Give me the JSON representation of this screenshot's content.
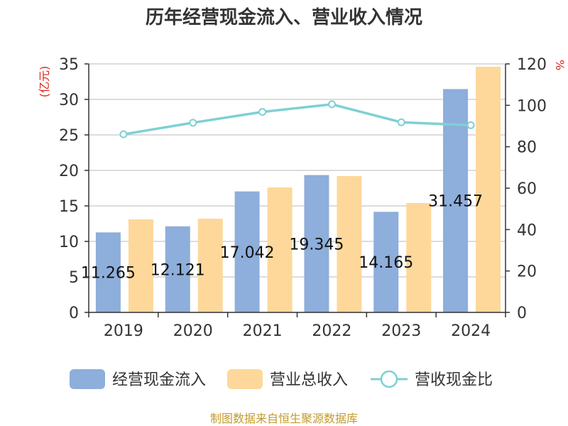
{
  "chart_data": {
    "type": "bar",
    "title": "历年经营现金流入、营业收入情况",
    "categories": [
      "2019",
      "2020",
      "2021",
      "2022",
      "2023",
      "2024"
    ],
    "series": [
      {
        "name": "经营现金流入",
        "axis": "left",
        "color": "#8eaedb",
        "values": [
          11.265,
          12.121,
          17.042,
          19.345,
          14.165,
          31.457
        ],
        "labels": [
          "11.265",
          "12.121",
          "17.042",
          "19.345",
          "14.165",
          "31.457"
        ]
      },
      {
        "name": "营业总收入",
        "axis": "left",
        "color": "#fdd89a",
        "values": [
          13.1,
          13.2,
          17.6,
          19.2,
          15.4,
          34.6
        ]
      },
      {
        "name": "营收现金比",
        "type": "line",
        "axis": "right",
        "color": "#7fd0d3",
        "values": [
          86,
          91.6,
          96.8,
          100.5,
          91.8,
          90.4
        ]
      }
    ],
    "y_left": {
      "unit": "(亿元)",
      "min": 0,
      "max": 35,
      "ticks": [
        0,
        5,
        10,
        15,
        20,
        25,
        30,
        35
      ]
    },
    "y_right": {
      "unit": "%",
      "min": 0,
      "max": 120,
      "ticks": [
        0,
        20,
        40,
        60,
        80,
        100,
        120
      ]
    },
    "legend_position": "bottom",
    "grid": true
  },
  "source_text": "制图数据来自恒生聚源数据库"
}
